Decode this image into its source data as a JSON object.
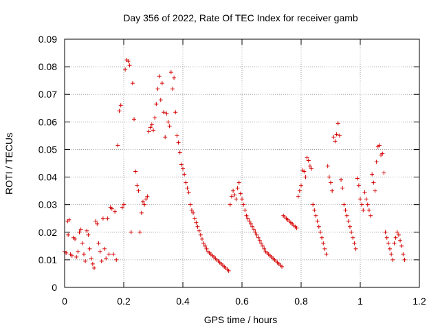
{
  "chart_data": {
    "type": "scatter",
    "title": "Day 356 of 2022, Rate Of TEC Index for receiver gamb",
    "xlabel": "GPS time / hours",
    "ylabel": "ROTI / TECUs",
    "xlim": [
      0,
      1.2
    ],
    "ylim": [
      0,
      0.09
    ],
    "xticks": [
      "0",
      "0.2",
      "0.4",
      "0.6",
      "0.8",
      "1",
      "1.2"
    ],
    "yticks": [
      "0",
      "0.01",
      "0.02",
      "0.03",
      "0.04",
      "0.05",
      "0.06",
      "0.07",
      "0.08",
      "0.09"
    ],
    "grid": true,
    "marker": "+",
    "color": "#d40000",
    "series": [
      {
        "points": [
          [
            0.0,
            0.013
          ],
          [
            0.005,
            0.0125
          ],
          [
            0.01,
            0.024
          ],
          [
            0.015,
            0.0245
          ],
          [
            0.012,
            0.019
          ],
          [
            0.02,
            0.012
          ],
          [
            0.025,
            0.0115
          ],
          [
            0.03,
            0.018
          ],
          [
            0.035,
            0.0175
          ],
          [
            0.04,
            0.011
          ],
          [
            0.045,
            0.013
          ],
          [
            0.05,
            0.02
          ],
          [
            0.055,
            0.021
          ],
          [
            0.06,
            0.016
          ],
          [
            0.065,
            0.012
          ],
          [
            0.07,
            0.0095
          ],
          [
            0.075,
            0.0205
          ],
          [
            0.08,
            0.019
          ],
          [
            0.085,
            0.014
          ],
          [
            0.09,
            0.0105
          ],
          [
            0.095,
            0.0085
          ],
          [
            0.1,
            0.007
          ],
          [
            0.105,
            0.024
          ],
          [
            0.11,
            0.023
          ],
          [
            0.115,
            0.016
          ],
          [
            0.12,
            0.013
          ],
          [
            0.125,
            0.0095
          ],
          [
            0.13,
            0.025
          ],
          [
            0.135,
            0.014
          ],
          [
            0.14,
            0.0105
          ],
          [
            0.145,
            0.025
          ],
          [
            0.15,
            0.012
          ],
          [
            0.155,
            0.029
          ],
          [
            0.16,
            0.0285
          ],
          [
            0.165,
            0.012
          ],
          [
            0.17,
            0.0275
          ],
          [
            0.175,
            0.01
          ],
          [
            0.18,
            0.0515
          ],
          [
            0.185,
            0.064
          ],
          [
            0.19,
            0.066
          ],
          [
            0.195,
            0.029
          ],
          [
            0.2,
            0.03
          ],
          [
            0.205,
            0.079
          ],
          [
            0.21,
            0.0825
          ],
          [
            0.215,
            0.082
          ],
          [
            0.22,
            0.0805
          ],
          [
            0.225,
            0.02
          ],
          [
            0.23,
            0.074
          ],
          [
            0.235,
            0.061
          ],
          [
            0.24,
            0.042
          ],
          [
            0.245,
            0.037
          ],
          [
            0.25,
            0.035
          ],
          [
            0.255,
            0.02
          ],
          [
            0.26,
            0.027
          ],
          [
            0.265,
            0.031
          ],
          [
            0.27,
            0.03
          ],
          [
            0.275,
            0.032
          ],
          [
            0.28,
            0.033
          ],
          [
            0.285,
            0.0565
          ],
          [
            0.29,
            0.058
          ],
          [
            0.295,
            0.059
          ],
          [
            0.3,
            0.057
          ],
          [
            0.305,
            0.0615
          ],
          [
            0.31,
            0.0665
          ],
          [
            0.315,
            0.072
          ],
          [
            0.32,
            0.0765
          ],
          [
            0.325,
            0.068
          ],
          [
            0.33,
            0.074
          ],
          [
            0.335,
            0.0635
          ],
          [
            0.34,
            0.0545
          ],
          [
            0.345,
            0.063
          ],
          [
            0.35,
            0.06
          ],
          [
            0.355,
            0.0585
          ],
          [
            0.36,
            0.078
          ],
          [
            0.365,
            0.072
          ],
          [
            0.37,
            0.076
          ],
          [
            0.375,
            0.0635
          ],
          [
            0.38,
            0.055
          ],
          [
            0.385,
            0.0525
          ],
          [
            0.39,
            0.049
          ],
          [
            0.395,
            0.0445
          ],
          [
            0.4,
            0.043
          ],
          [
            0.405,
            0.041
          ],
          [
            0.41,
            0.038
          ],
          [
            0.415,
            0.036
          ],
          [
            0.42,
            0.0345
          ],
          [
            0.425,
            0.03
          ],
          [
            0.43,
            0.028
          ],
          [
            0.435,
            0.027
          ],
          [
            0.44,
            0.025
          ],
          [
            0.445,
            0.0235
          ],
          [
            0.45,
            0.022
          ],
          [
            0.455,
            0.0205
          ],
          [
            0.46,
            0.019
          ],
          [
            0.465,
            0.0175
          ],
          [
            0.47,
            0.016
          ],
          [
            0.475,
            0.015
          ],
          [
            0.48,
            0.014
          ],
          [
            0.485,
            0.013
          ],
          [
            0.49,
            0.0125
          ],
          [
            0.495,
            0.012
          ],
          [
            0.5,
            0.0115
          ],
          [
            0.505,
            0.011
          ],
          [
            0.51,
            0.0105
          ],
          [
            0.515,
            0.01
          ],
          [
            0.52,
            0.0095
          ],
          [
            0.525,
            0.009
          ],
          [
            0.53,
            0.0085
          ],
          [
            0.535,
            0.008
          ],
          [
            0.54,
            0.0075
          ],
          [
            0.545,
            0.007
          ],
          [
            0.55,
            0.0065
          ],
          [
            0.555,
            0.006
          ],
          [
            0.56,
            0.03
          ],
          [
            0.565,
            0.033
          ],
          [
            0.57,
            0.035
          ],
          [
            0.575,
            0.0335
          ],
          [
            0.58,
            0.032
          ],
          [
            0.585,
            0.036
          ],
          [
            0.59,
            0.038
          ],
          [
            0.595,
            0.034
          ],
          [
            0.6,
            0.032
          ],
          [
            0.605,
            0.03
          ],
          [
            0.61,
            0.028
          ],
          [
            0.615,
            0.026
          ],
          [
            0.62,
            0.025
          ],
          [
            0.625,
            0.024
          ],
          [
            0.63,
            0.023
          ],
          [
            0.635,
            0.022
          ],
          [
            0.64,
            0.021
          ],
          [
            0.645,
            0.02
          ],
          [
            0.65,
            0.019
          ],
          [
            0.655,
            0.018
          ],
          [
            0.66,
            0.017
          ],
          [
            0.665,
            0.016
          ],
          [
            0.67,
            0.015
          ],
          [
            0.675,
            0.014
          ],
          [
            0.68,
            0.013
          ],
          [
            0.685,
            0.0125
          ],
          [
            0.69,
            0.012
          ],
          [
            0.695,
            0.0115
          ],
          [
            0.7,
            0.011
          ],
          [
            0.705,
            0.0105
          ],
          [
            0.71,
            0.01
          ],
          [
            0.715,
            0.0095
          ],
          [
            0.72,
            0.009
          ],
          [
            0.725,
            0.0085
          ],
          [
            0.73,
            0.008
          ],
          [
            0.735,
            0.0075
          ],
          [
            0.74,
            0.026
          ],
          [
            0.745,
            0.0255
          ],
          [
            0.75,
            0.025
          ],
          [
            0.755,
            0.0245
          ],
          [
            0.76,
            0.024
          ],
          [
            0.765,
            0.0235
          ],
          [
            0.77,
            0.023
          ],
          [
            0.775,
            0.0225
          ],
          [
            0.78,
            0.022
          ],
          [
            0.785,
            0.0215
          ],
          [
            0.79,
            0.033
          ],
          [
            0.795,
            0.035
          ],
          [
            0.8,
            0.037
          ],
          [
            0.805,
            0.0425
          ],
          [
            0.81,
            0.042
          ],
          [
            0.815,
            0.04
          ],
          [
            0.82,
            0.047
          ],
          [
            0.825,
            0.046
          ],
          [
            0.83,
            0.044
          ],
          [
            0.835,
            0.043
          ],
          [
            0.84,
            0.03
          ],
          [
            0.845,
            0.028
          ],
          [
            0.85,
            0.026
          ],
          [
            0.855,
            0.024
          ],
          [
            0.86,
            0.022
          ],
          [
            0.865,
            0.02
          ],
          [
            0.87,
            0.018
          ],
          [
            0.875,
            0.016
          ],
          [
            0.88,
            0.014
          ],
          [
            0.885,
            0.012
          ],
          [
            0.89,
            0.044
          ],
          [
            0.895,
            0.04
          ],
          [
            0.9,
            0.038
          ],
          [
            0.905,
            0.035
          ],
          [
            0.91,
            0.0545
          ],
          [
            0.915,
            0.053
          ],
          [
            0.92,
            0.0555
          ],
          [
            0.925,
            0.0595
          ],
          [
            0.93,
            0.055
          ],
          [
            0.935,
            0.039
          ],
          [
            0.94,
            0.036
          ],
          [
            0.945,
            0.03
          ],
          [
            0.95,
            0.028
          ],
          [
            0.955,
            0.026
          ],
          [
            0.96,
            0.024
          ],
          [
            0.965,
            0.022
          ],
          [
            0.97,
            0.02
          ],
          [
            0.975,
            0.018
          ],
          [
            0.98,
            0.016
          ],
          [
            0.985,
            0.014
          ],
          [
            0.99,
            0.0395
          ],
          [
            0.995,
            0.037
          ],
          [
            1.0,
            0.032
          ],
          [
            1.005,
            0.03
          ],
          [
            1.01,
            0.028
          ],
          [
            1.015,
            0.0345
          ],
          [
            1.02,
            0.032
          ],
          [
            1.025,
            0.03
          ],
          [
            1.03,
            0.028
          ],
          [
            1.035,
            0.026
          ],
          [
            1.04,
            0.041
          ],
          [
            1.045,
            0.038
          ],
          [
            1.05,
            0.035
          ],
          [
            1.055,
            0.0455
          ],
          [
            1.06,
            0.051
          ],
          [
            1.065,
            0.0515
          ],
          [
            1.07,
            0.048
          ],
          [
            1.075,
            0.0485
          ],
          [
            1.08,
            0.0415
          ],
          [
            1.085,
            0.02
          ],
          [
            1.09,
            0.018
          ],
          [
            1.095,
            0.016
          ],
          [
            1.1,
            0.014
          ],
          [
            1.105,
            0.012
          ],
          [
            1.11,
            0.01
          ],
          [
            1.115,
            0.016
          ],
          [
            1.12,
            0.018
          ],
          [
            1.125,
            0.02
          ],
          [
            1.13,
            0.019
          ],
          [
            1.135,
            0.017
          ],
          [
            1.14,
            0.015
          ],
          [
            1.145,
            0.012
          ],
          [
            1.15,
            0.01
          ]
        ]
      }
    ]
  }
}
